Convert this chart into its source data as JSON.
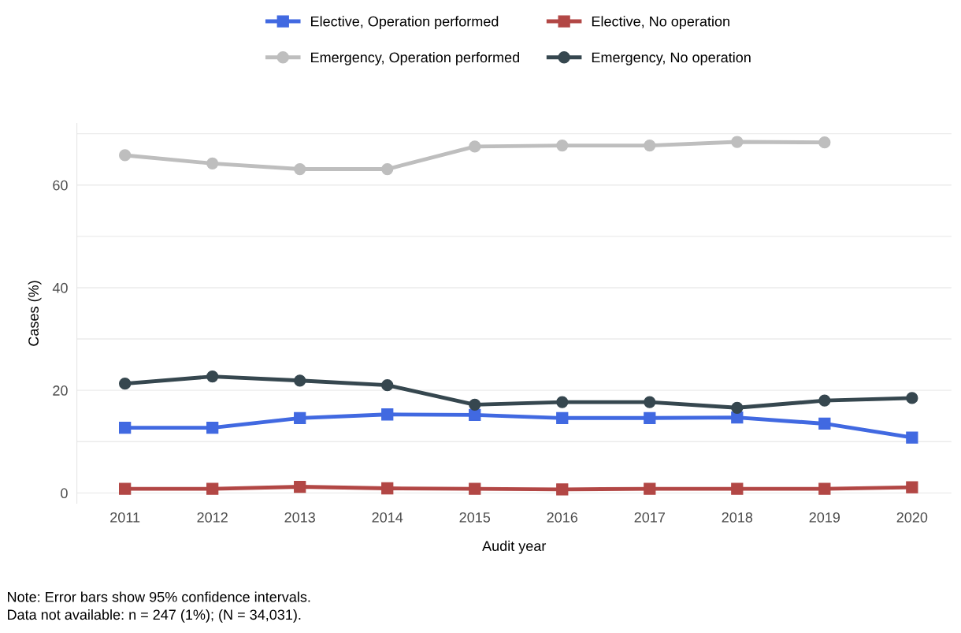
{
  "chart_data": {
    "type": "line",
    "xlabel": "Audit year",
    "ylabel": "Cases (%)",
    "categories": [
      "2011",
      "2012",
      "2013",
      "2014",
      "2015",
      "2016",
      "2017",
      "2018",
      "2019",
      "2020"
    ],
    "series": [
      {
        "name": "Elective, Operation performed",
        "color": "#4169e1",
        "marker": "square",
        "values": [
          12.7,
          12.7,
          14.6,
          15.3,
          15.2,
          14.6,
          14.6,
          14.7,
          13.5,
          10.8
        ]
      },
      {
        "name": "Elective, No operation",
        "color": "#b24745",
        "marker": "square",
        "values": [
          0.8,
          0.8,
          1.2,
          0.9,
          0.8,
          0.7,
          0.8,
          0.8,
          0.8,
          1.1
        ]
      },
      {
        "name": "Emergency, Operation performed",
        "color": "#bebebe",
        "marker": "circle",
        "values": [
          65.8,
          64.2,
          63.1,
          63.1,
          67.5,
          67.7,
          67.7,
          68.4,
          68.3,
          null
        ]
      },
      {
        "name": "Emergency, No operation",
        "color": "#36474f",
        "marker": "circle",
        "values": [
          21.3,
          22.7,
          21.9,
          21.0,
          17.2,
          17.7,
          17.7,
          16.6,
          18.0,
          18.5
        ]
      }
    ],
    "ylim": [
      -2,
      72
    ],
    "yticks": [
      0,
      {
        "value": 10,
        "label": null
      },
      20,
      {
        "value": 30,
        "label": null
      },
      40,
      {
        "value": 50,
        "label": null
      },
      60,
      {
        "value": 70,
        "label": null
      }
    ],
    "grid": "y",
    "legend": "top",
    "line_style": "solid",
    "annotations": [
      "Note: Error bars show 95% confidence intervals.",
      "Data not available: n = 247 (1%); (N = 34,031)."
    ]
  }
}
